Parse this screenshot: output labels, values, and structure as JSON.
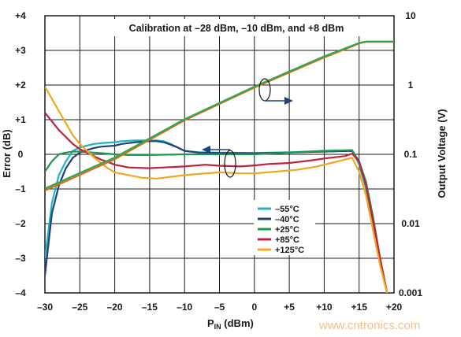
{
  "chart_data": {
    "type": "line",
    "title": "",
    "annotation": "Calibration at –28 dBm, –10 dBm, and +8 dBm",
    "xlabel_main": "P",
    "xlabel_sub": "IN",
    "xlabel_unit": " (dBm)",
    "ylabel_left": "Error (dB)",
    "ylabel_right": "Output Voltage (V)",
    "xlim": [
      -30,
      20
    ],
    "ylim_left": [
      -4,
      4
    ],
    "ylim_right": [
      0.001,
      10
    ],
    "right_axis_scale": "log",
    "grid": true,
    "x_ticks": [
      "–30",
      "–25",
      "–20",
      "–15",
      "–10",
      "–5",
      "0",
      "+5",
      "+10",
      "+15",
      "+20"
    ],
    "x_tick_values": [
      -30,
      -25,
      -20,
      -15,
      -10,
      -5,
      0,
      5,
      10,
      15,
      20
    ],
    "y_ticks_left": [
      "–4",
      "–3",
      "–2",
      "–1",
      "0",
      "+1",
      "+2",
      "+3",
      "+4"
    ],
    "y_tick_values_left": [
      -4,
      -3,
      -2,
      -1,
      0,
      1,
      2,
      3,
      4
    ],
    "y_ticks_right": [
      "0.001",
      "0.01",
      "0.1",
      "1",
      "10"
    ],
    "y_tick_values_right": [
      0.001,
      0.01,
      0.1,
      1,
      10
    ],
    "legend_position": "lower-center",
    "series_order": [
      "-55",
      "-40",
      "+25",
      "+85",
      "+125"
    ],
    "series": [
      {
        "name": "–55°C",
        "color": "#1fb5c0",
        "axis": "left",
        "points": [
          [
            -30,
            -3.0
          ],
          [
            -29,
            -1.4
          ],
          [
            -28,
            -0.6
          ],
          [
            -27,
            -0.2
          ],
          [
            -26,
            0.1
          ],
          [
            -25,
            0.2
          ],
          [
            -24,
            0.25
          ],
          [
            -23,
            0.3
          ],
          [
            -22,
            0.32
          ],
          [
            -20,
            0.35
          ],
          [
            -19,
            0.38
          ],
          [
            -17,
            0.4
          ],
          [
            -15,
            0.4
          ],
          [
            -14,
            0.4
          ],
          [
            -13,
            0.38
          ],
          [
            -12,
            0.3
          ],
          [
            -11,
            0.2
          ],
          [
            -10,
            0.1
          ],
          [
            -8,
            0.06
          ],
          [
            -5,
            0.05
          ],
          [
            0,
            0.04
          ],
          [
            5,
            0.06
          ],
          [
            10,
            0.1
          ],
          [
            14,
            0.12
          ],
          [
            15,
            -0.3
          ],
          [
            16,
            -1.0
          ],
          [
            17,
            -2.0
          ],
          [
            18,
            -3.0
          ],
          [
            19,
            -4.0
          ]
        ]
      },
      {
        "name": "–40°C",
        "color": "#24407a",
        "axis": "left",
        "points": [
          [
            -30,
            -3.5
          ],
          [
            -29,
            -1.7
          ],
          [
            -28,
            -0.9
          ],
          [
            -27,
            -0.4
          ],
          [
            -26,
            -0.1
          ],
          [
            -25,
            0.05
          ],
          [
            -24,
            0.12
          ],
          [
            -23,
            0.18
          ],
          [
            -22,
            0.22
          ],
          [
            -20,
            0.25
          ],
          [
            -19,
            0.3
          ],
          [
            -17,
            0.35
          ],
          [
            -15,
            0.38
          ],
          [
            -14,
            0.38
          ],
          [
            -13,
            0.35
          ],
          [
            -12,
            0.28
          ],
          [
            -11,
            0.2
          ],
          [
            -10,
            0.1
          ],
          [
            -8,
            0.05
          ],
          [
            -5,
            0.04
          ],
          [
            0,
            0.03
          ],
          [
            5,
            0.05
          ],
          [
            10,
            0.08
          ],
          [
            14,
            0.1
          ],
          [
            15,
            -0.2
          ],
          [
            16,
            -0.9
          ],
          [
            17,
            -1.9
          ],
          [
            18,
            -3.0
          ],
          [
            19,
            -4.0
          ]
        ]
      },
      {
        "name": "+25°C",
        "color": "#1e9a4a",
        "axis": "left",
        "points": [
          [
            -30,
            -0.5
          ],
          [
            -29,
            -0.2
          ],
          [
            -28,
            0.0
          ],
          [
            -27,
            0.05
          ],
          [
            -26,
            0.08
          ],
          [
            -25,
            0.08
          ],
          [
            -23,
            0.05
          ],
          [
            -21,
            0.02
          ],
          [
            -20,
            0.0
          ],
          [
            -18,
            -0.02
          ],
          [
            -15,
            -0.02
          ],
          [
            -10,
            0.0
          ],
          [
            -5,
            0.0
          ],
          [
            0,
            0.0
          ],
          [
            5,
            0.05
          ],
          [
            10,
            0.1
          ],
          [
            14,
            0.12
          ],
          [
            15,
            -0.2
          ],
          [
            16,
            -0.8
          ],
          [
            17,
            -1.8
          ],
          [
            18,
            -3.0
          ],
          [
            19,
            -4.0
          ]
        ]
      },
      {
        "name": "+85°C",
        "color": "#c0213f",
        "axis": "left",
        "points": [
          [
            -30,
            1.2
          ],
          [
            -29,
            0.95
          ],
          [
            -28,
            0.7
          ],
          [
            -27,
            0.5
          ],
          [
            -26,
            0.3
          ],
          [
            -25,
            0.15
          ],
          [
            -24,
            0.05
          ],
          [
            -23,
            -0.05
          ],
          [
            -22,
            -0.15
          ],
          [
            -21,
            -0.22
          ],
          [
            -20,
            -0.3
          ],
          [
            -18,
            -0.38
          ],
          [
            -15,
            -0.4
          ],
          [
            -13,
            -0.38
          ],
          [
            -10,
            -0.35
          ],
          [
            -7,
            -0.3
          ],
          [
            -5,
            -0.33
          ],
          [
            -2,
            -0.35
          ],
          [
            0,
            -0.32
          ],
          [
            2,
            -0.28
          ],
          [
            5,
            -0.25
          ],
          [
            8,
            -0.18
          ],
          [
            10,
            -0.12
          ],
          [
            13,
            -0.05
          ],
          [
            14,
            0.02
          ],
          [
            15,
            -0.2
          ],
          [
            16,
            -0.9
          ],
          [
            17,
            -1.9
          ],
          [
            18,
            -3.0
          ],
          [
            19,
            -4.0
          ]
        ]
      },
      {
        "name": "+125°C",
        "color": "#f0a820",
        "axis": "left",
        "points": [
          [
            -30,
            1.95
          ],
          [
            -29,
            1.6
          ],
          [
            -28,
            1.25
          ],
          [
            -27,
            0.9
          ],
          [
            -26,
            0.55
          ],
          [
            -25,
            0.3
          ],
          [
            -24,
            0.1
          ],
          [
            -23,
            -0.08
          ],
          [
            -22,
            -0.25
          ],
          [
            -21,
            -0.4
          ],
          [
            -20,
            -0.52
          ],
          [
            -18,
            -0.6
          ],
          [
            -16,
            -0.68
          ],
          [
            -14,
            -0.7
          ],
          [
            -12,
            -0.65
          ],
          [
            -10,
            -0.6
          ],
          [
            -7,
            -0.55
          ],
          [
            -5,
            -0.52
          ],
          [
            -2,
            -0.55
          ],
          [
            0,
            -0.55
          ],
          [
            3,
            -0.5
          ],
          [
            6,
            -0.45
          ],
          [
            9,
            -0.35
          ],
          [
            11,
            -0.25
          ],
          [
            13,
            -0.15
          ],
          [
            14,
            -0.1
          ],
          [
            15,
            -0.5
          ],
          [
            16,
            -1.2
          ],
          [
            17,
            -2.2
          ],
          [
            18,
            -3.2
          ],
          [
            19,
            -4.0
          ]
        ]
      },
      {
        "name": "Output voltage (orange)",
        "color": "#e06a1a",
        "axis": "right",
        "points": [
          [
            -30,
            0.03
          ],
          [
            -20,
            0.085
          ],
          [
            -10,
            0.31
          ],
          [
            0,
            0.92
          ],
          [
            10,
            2.5
          ],
          [
            14,
            3.6
          ],
          [
            15,
            4.0
          ],
          [
            16,
            4.2
          ],
          [
            20,
            4.2
          ]
        ]
      },
      {
        "name": "Output voltage (green)",
        "color": "#2fa84f",
        "axis": "right",
        "points": [
          [
            -30,
            0.032
          ],
          [
            -20,
            0.09
          ],
          [
            -10,
            0.32
          ],
          [
            0,
            0.95
          ],
          [
            10,
            2.6
          ],
          [
            14,
            3.7
          ],
          [
            15,
            4.05
          ],
          [
            16,
            4.25
          ],
          [
            20,
            4.25
          ]
        ]
      }
    ],
    "legend": [
      {
        "label": "–55°C",
        "color": "#1fb5c0"
      },
      {
        "label": "–40°C",
        "color": "#24407a"
      },
      {
        "label": "+25°C",
        "color": "#1e9a4a"
      },
      {
        "label": "+85°C",
        "color": "#c0213f"
      },
      {
        "label": "+125°C",
        "color": "#f0a820"
      }
    ],
    "arrows": [
      {
        "from": "error curves",
        "to": "left axis"
      },
      {
        "from": "output voltage curves",
        "to": "right axis"
      }
    ]
  },
  "watermark": "www.cntronics.com"
}
